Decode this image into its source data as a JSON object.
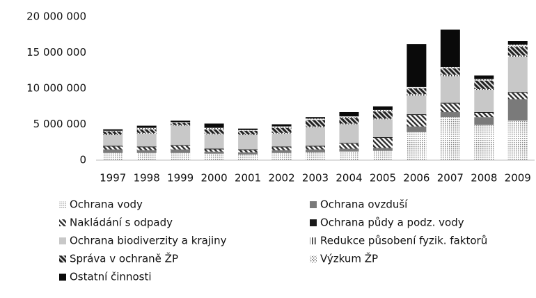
{
  "chart_data": {
    "type": "stacked-bar",
    "categories": [
      "1997",
      "1998",
      "1999",
      "2000",
      "2001",
      "2002",
      "2003",
      "2004",
      "2005",
      "2006",
      "2007",
      "2008",
      "2009"
    ],
    "series": [
      {
        "name": "Ochrana vody",
        "color": "#b0b0b0",
        "pattern": "dots",
        "values": [
          1000000,
          1000000,
          1000000,
          900000,
          800000,
          1000000,
          1100000,
          1200000,
          1300000,
          3900000,
          6000000,
          4900000,
          5500000
        ]
      },
      {
        "name": "Ochrana ovzduší",
        "color": "#7a7a7a",
        "pattern": "solid",
        "values": [
          500000,
          400000,
          500000,
          300000,
          300000,
          400000,
          400000,
          400000,
          400000,
          800000,
          700000,
          1100000,
          3000000
        ]
      },
      {
        "name": "Nakládání s odpady",
        "color": "#333333",
        "pattern": "hatch",
        "values": [
          400000,
          400000,
          500000,
          300000,
          300000,
          400000,
          400000,
          700000,
          1400000,
          1600000,
          1200000,
          600000,
          900000
        ]
      },
      {
        "name": "Ochrana půdy a podz. vody",
        "color": "#1a1a1a",
        "pattern": "solid",
        "values": [
          100000,
          100000,
          100000,
          100000,
          100000,
          100000,
          100000,
          100000,
          100000,
          100000,
          100000,
          100000,
          100000
        ]
      },
      {
        "name": "Ochrana biodiverzity a krajiny",
        "color": "#c8c8c8",
        "pattern": "solid",
        "values": [
          1500000,
          1800000,
          2700000,
          2000000,
          2000000,
          1800000,
          2600000,
          2600000,
          2500000,
          2600000,
          3700000,
          3100000,
          4900000
        ]
      },
      {
        "name": "Redukce působení fyzik. faktorů",
        "color": "#222222",
        "pattern": "vlines",
        "values": [
          100000,
          100000,
          100000,
          100000,
          100000,
          100000,
          100000,
          100000,
          100000,
          200000,
          200000,
          100000,
          200000
        ]
      },
      {
        "name": "Správa v ochraně ŽP",
        "color": "#222222",
        "pattern": "hatch-thick",
        "values": [
          400000,
          500000,
          300000,
          600000,
          500000,
          700000,
          900000,
          800000,
          1000000,
          800000,
          900000,
          1200000,
          1200000
        ]
      },
      {
        "name": "Výzkum ŽP",
        "color": "#444444",
        "pattern": "cross",
        "values": [
          100000,
          200000,
          100000,
          200000,
          100000,
          200000,
          200000,
          200000,
          200000,
          200000,
          200000,
          200000,
          300000
        ]
      },
      {
        "name": "Ostatní činnosti",
        "color": "#0a0a0a",
        "pattern": "solid",
        "values": [
          200000,
          300000,
          200000,
          600000,
          200000,
          300000,
          200000,
          600000,
          500000,
          6000000,
          5200000,
          500000,
          500000
        ]
      }
    ],
    "ylim": [
      0,
      20000000
    ],
    "yticks": [
      0,
      {
        "value": 5000000,
        "label": "5 000 000"
      },
      {
        "value": 10000000,
        "label": "10 000 000"
      },
      {
        "value": 15000000,
        "label": "15 000 000"
      },
      {
        "value": 20000000,
        "label": "20 000 000"
      }
    ],
    "grid": false
  }
}
